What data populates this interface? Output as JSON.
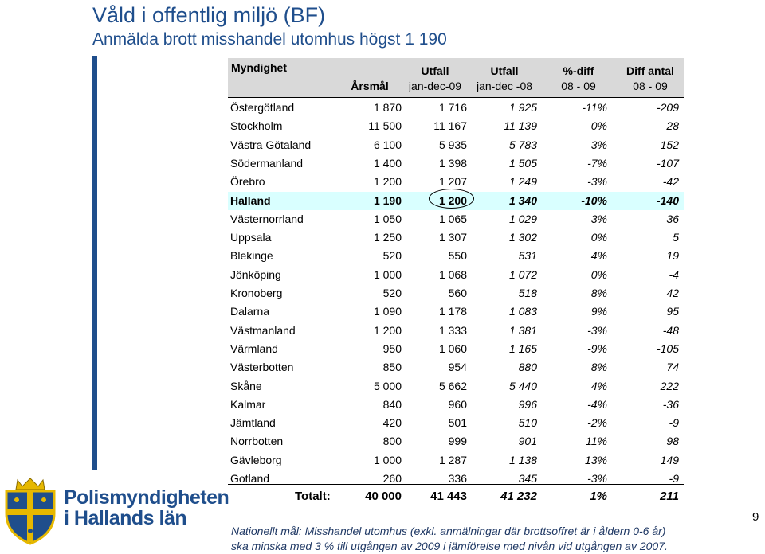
{
  "title": "Våld i offentlig miljö (BF)",
  "subtitle": "Anmälda brott misshandel utomhus högst 1 190",
  "table": {
    "headers": {
      "myndighet": "Myndighet",
      "arsmal": "Årsmål",
      "utfall09_l1": "Utfall",
      "utfall09_l2": "jan-dec-09",
      "utfall08_l1": "Utfall",
      "utfall08_l2": "jan-dec -08",
      "pdiff_l1": "%-diff",
      "pdiff_l2": "08 - 09",
      "diffantal_l1": "Diff antal",
      "diffantal_l2": "08 - 09"
    },
    "rows": [
      {
        "name": "Östergötland",
        "arsmal": "1 870",
        "u09": "1 716",
        "u08": "1 925",
        "pdiff": "-11%",
        "diff": "-209"
      },
      {
        "name": "Stockholm",
        "arsmal": "11 500",
        "u09": "11 167",
        "u08": "11 139",
        "pdiff": "0%",
        "diff": "28"
      },
      {
        "name": "Västra Götaland",
        "arsmal": "6 100",
        "u09": "5 935",
        "u08": "5 783",
        "pdiff": "3%",
        "diff": "152"
      },
      {
        "name": "Södermanland",
        "arsmal": "1 400",
        "u09": "1 398",
        "u08": "1 505",
        "pdiff": "-7%",
        "diff": "-107"
      },
      {
        "name": "Örebro",
        "arsmal": "1 200",
        "u09": "1 207",
        "u08": "1 249",
        "pdiff": "-3%",
        "diff": "-42"
      },
      {
        "name": "Halland",
        "arsmal": "1 190",
        "u09": "1 200",
        "u08": "1 340",
        "pdiff": "-10%",
        "diff": "-140"
      },
      {
        "name": "Västernorrland",
        "arsmal": "1 050",
        "u09": "1 065",
        "u08": "1 029",
        "pdiff": "3%",
        "diff": "36"
      },
      {
        "name": "Uppsala",
        "arsmal": "1 250",
        "u09": "1 307",
        "u08": "1 302",
        "pdiff": "0%",
        "diff": "5"
      },
      {
        "name": "Blekinge",
        "arsmal": "520",
        "u09": "550",
        "u08": "531",
        "pdiff": "4%",
        "diff": "19"
      },
      {
        "name": "Jönköping",
        "arsmal": "1 000",
        "u09": "1 068",
        "u08": "1 072",
        "pdiff": "0%",
        "diff": "-4"
      },
      {
        "name": "Kronoberg",
        "arsmal": "520",
        "u09": "560",
        "u08": "518",
        "pdiff": "8%",
        "diff": "42"
      },
      {
        "name": "Dalarna",
        "arsmal": "1 090",
        "u09": "1 178",
        "u08": "1 083",
        "pdiff": "9%",
        "diff": "95"
      },
      {
        "name": "Västmanland",
        "arsmal": "1 200",
        "u09": "1 333",
        "u08": "1 381",
        "pdiff": "-3%",
        "diff": "-48"
      },
      {
        "name": "Värmland",
        "arsmal": "950",
        "u09": "1 060",
        "u08": "1 165",
        "pdiff": "-9%",
        "diff": "-105"
      },
      {
        "name": "Västerbotten",
        "arsmal": "850",
        "u09": "954",
        "u08": "880",
        "pdiff": "8%",
        "diff": "74"
      },
      {
        "name": "Skåne",
        "arsmal": "5 000",
        "u09": "5 662",
        "u08": "5 440",
        "pdiff": "4%",
        "diff": "222"
      },
      {
        "name": "Kalmar",
        "arsmal": "840",
        "u09": "960",
        "u08": "996",
        "pdiff": "-4%",
        "diff": "-36"
      },
      {
        "name": "Jämtland",
        "arsmal": "420",
        "u09": "501",
        "u08": "510",
        "pdiff": "-2%",
        "diff": "-9"
      },
      {
        "name": "Norrbotten",
        "arsmal": "800",
        "u09": "999",
        "u08": "901",
        "pdiff": "11%",
        "diff": "98"
      },
      {
        "name": "Gävleborg",
        "arsmal": "1 000",
        "u09": "1 287",
        "u08": "1 138",
        "pdiff": "13%",
        "diff": "149"
      },
      {
        "name": "Gotland",
        "arsmal": "260",
        "u09": "336",
        "u08": "345",
        "pdiff": "-3%",
        "diff": "-9"
      }
    ],
    "highlight_row": "Halland",
    "total": {
      "label": "Totalt:",
      "arsmal": "40 000",
      "u09": "41 443",
      "u08": "41 232",
      "pdiff": "1%",
      "diff": "211"
    }
  },
  "footnote": {
    "lead": "Nationellt mål:",
    "line1_rest": " Misshandel utomhus (exkl. anmälningar där brottsoffret är i åldern 0-6 år)",
    "line2": "ska minska med 3 % till utgången av 2009 i jämförelse med nivån vid utgången av 2007."
  },
  "logo": {
    "line1": "Polismyndigheten",
    "line2": "i Hallands län"
  },
  "page_number": "9",
  "colors": {
    "title": "#1f4e8c",
    "header_bg": "#d9d9d9",
    "highlight_bg": "#d9ffff",
    "logo_blue": "#1f4e8c",
    "logo_gold": "#e6b800"
  }
}
